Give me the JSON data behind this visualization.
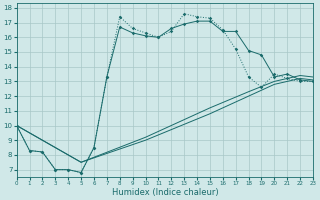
{
  "xlabel": "Humidex (Indice chaleur)",
  "xlim": [
    0,
    23
  ],
  "ylim": [
    6.5,
    18.3
  ],
  "yticks": [
    7,
    8,
    9,
    10,
    11,
    12,
    13,
    14,
    15,
    16,
    17,
    18
  ],
  "xticks": [
    0,
    1,
    2,
    3,
    4,
    5,
    6,
    7,
    8,
    9,
    10,
    11,
    12,
    13,
    14,
    15,
    16,
    17,
    18,
    19,
    20,
    21,
    22,
    23
  ],
  "bg_color": "#d0e8e8",
  "grid_color": "#a8c8c8",
  "line_color": "#1a6b6b",
  "line1_x": [
    0,
    1,
    2,
    3,
    4,
    5,
    6,
    7,
    8,
    9,
    10,
    11,
    12,
    13,
    14,
    15,
    16,
    17,
    18,
    19,
    20,
    21,
    22,
    23
  ],
  "line1_y": [
    10.0,
    8.3,
    8.2,
    7.0,
    7.0,
    6.8,
    8.5,
    13.3,
    16.7,
    16.3,
    16.1,
    16.0,
    16.6,
    16.9,
    17.1,
    17.1,
    16.4,
    16.4,
    15.1,
    14.8,
    13.3,
    13.5,
    13.1,
    13.0
  ],
  "line2_x": [
    0,
    1,
    2,
    3,
    4,
    5,
    6,
    7,
    8,
    9,
    10,
    11,
    12,
    13,
    14,
    15,
    16,
    17,
    18,
    19,
    20,
    21,
    22,
    23
  ],
  "line2_y": [
    10.0,
    8.3,
    8.2,
    7.0,
    7.0,
    6.8,
    8.5,
    13.3,
    17.4,
    16.6,
    16.3,
    16.0,
    16.4,
    17.6,
    17.4,
    17.3,
    16.5,
    15.2,
    13.3,
    12.6,
    13.5,
    13.2,
    13.0,
    13.0
  ],
  "line3_x": [
    0,
    5,
    10,
    15,
    18,
    20,
    21,
    22,
    23
  ],
  "line3_y": [
    10.0,
    7.5,
    9.0,
    10.8,
    12.0,
    12.8,
    13.0,
    13.2,
    13.1
  ],
  "line4_x": [
    0,
    5,
    10,
    15,
    18,
    20,
    21,
    22,
    23
  ],
  "line4_y": [
    10.0,
    7.5,
    9.2,
    11.2,
    12.3,
    13.0,
    13.2,
    13.4,
    13.3
  ]
}
